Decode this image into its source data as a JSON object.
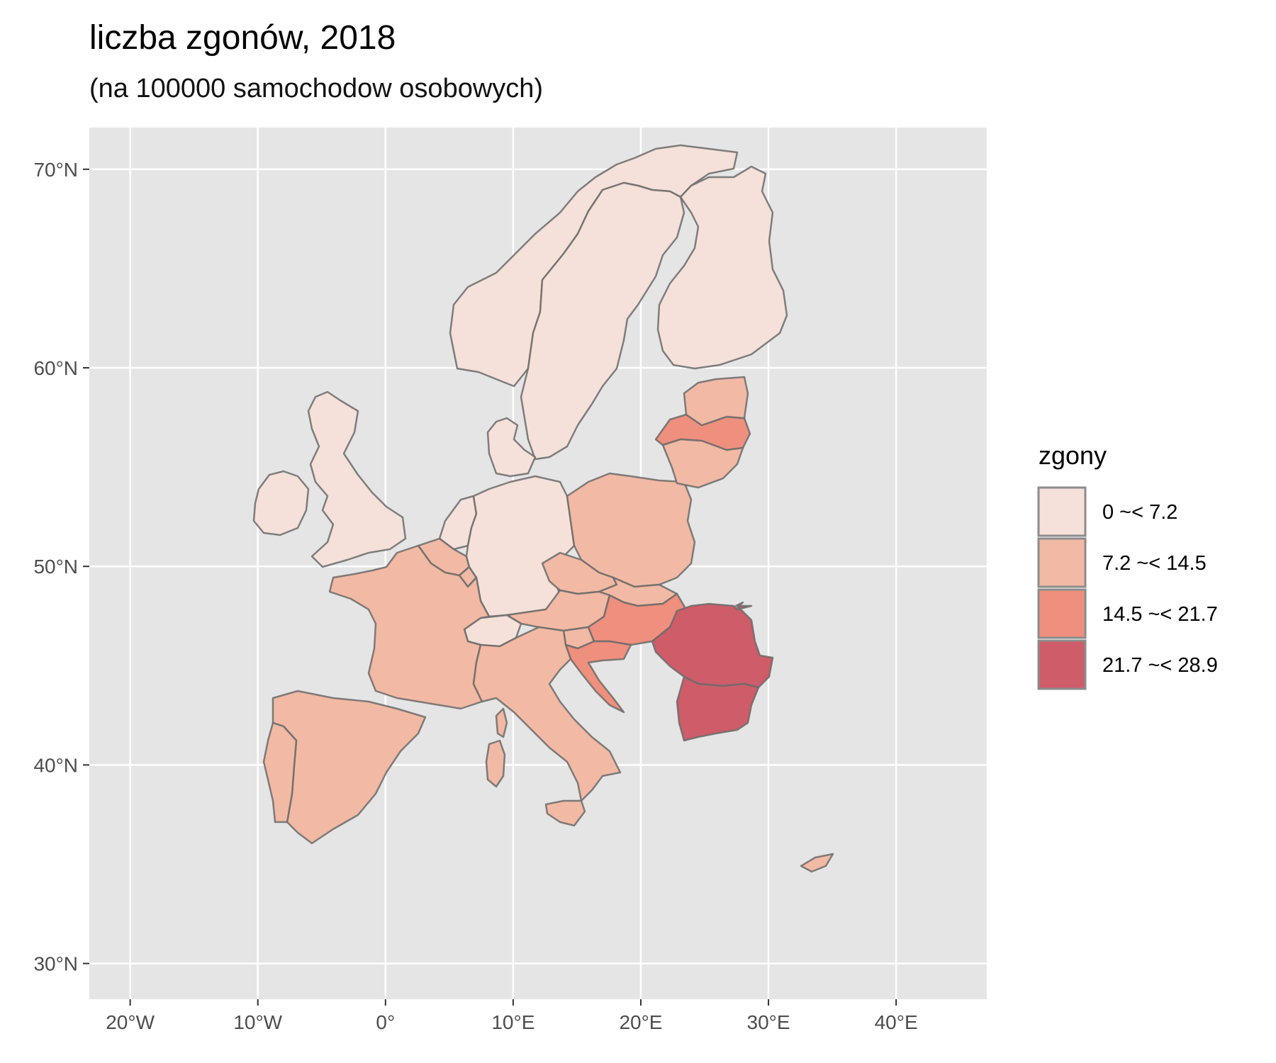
{
  "title": "liczba zgonów, 2018",
  "subtitle": "(na 100000 samochodow osobowych)",
  "map": {
    "type": "choropleth",
    "x_axis": {
      "ticks": [
        "20°W",
        "10°W",
        "0°",
        "10°E",
        "20°E",
        "30°E",
        "40°E"
      ],
      "values": [
        -20,
        -10,
        0,
        10,
        20,
        30,
        40
      ],
      "range": [
        -23.2,
        47.1
      ]
    },
    "y_axis": {
      "ticks": [
        "30°N",
        "40°N",
        "50°N",
        "60°N",
        "70°N"
      ],
      "values": [
        30,
        40,
        50,
        60,
        70
      ],
      "range": [
        28.2,
        72.1
      ]
    },
    "grid": true,
    "background": "#e5e5e5",
    "legend": {
      "title": "zgony",
      "placement": "right",
      "classes": [
        {
          "label": "0 ~< 7.2",
          "color": "#f5e1d9"
        },
        {
          "label": "7.2 ~< 14.5",
          "color": "#f2b9a4"
        },
        {
          "label": "14.5 ~< 21.7",
          "color": "#ef8f7e"
        },
        {
          "label": "21.7 ~< 28.9",
          "color": "#cf5c69"
        }
      ]
    },
    "regions": [
      {
        "name": "Norway",
        "class": 0
      },
      {
        "name": "Sweden",
        "class": 0
      },
      {
        "name": "Finland",
        "class": 0
      },
      {
        "name": "Denmark",
        "class": 0
      },
      {
        "name": "United Kingdom",
        "class": 0
      },
      {
        "name": "Ireland",
        "class": 0
      },
      {
        "name": "Netherlands",
        "class": 0
      },
      {
        "name": "Germany",
        "class": 0
      },
      {
        "name": "Switzerland",
        "class": 0
      },
      {
        "name": "Estonia",
        "class": 1
      },
      {
        "name": "Lithuania",
        "class": 1
      },
      {
        "name": "Poland",
        "class": 1
      },
      {
        "name": "Czechia",
        "class": 1
      },
      {
        "name": "Slovakia",
        "class": 1
      },
      {
        "name": "Austria",
        "class": 1
      },
      {
        "name": "Slovenia",
        "class": 1
      },
      {
        "name": "Belgium",
        "class": 1
      },
      {
        "name": "Luxembourg",
        "class": 1
      },
      {
        "name": "France",
        "class": 1
      },
      {
        "name": "Spain",
        "class": 1
      },
      {
        "name": "Portugal",
        "class": 1
      },
      {
        "name": "Italy",
        "class": 1
      },
      {
        "name": "Cyprus",
        "class": 1
      },
      {
        "name": "Latvia",
        "class": 2
      },
      {
        "name": "Hungary",
        "class": 2
      },
      {
        "name": "Croatia",
        "class": 2
      },
      {
        "name": "Romania",
        "class": 3
      },
      {
        "name": "Bulgaria",
        "class": 3
      }
    ]
  }
}
